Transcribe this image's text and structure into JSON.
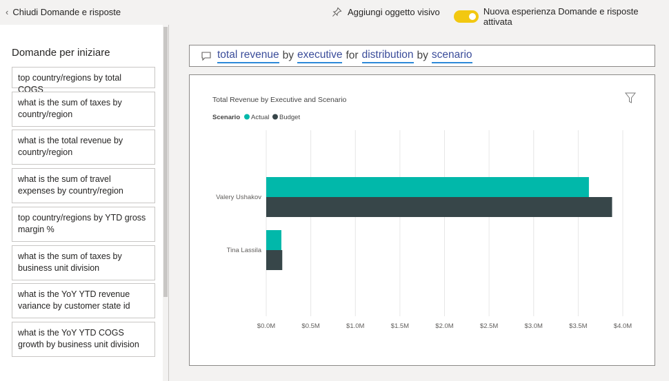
{
  "topbar": {
    "back_label": "Chiudi Domande e risposte",
    "pin_label": "Aggiungi oggetto visivo",
    "toggle_label": "Nuova esperienza Domande e risposte attivata",
    "toggle_color": "#f2c811"
  },
  "sidebar": {
    "title": "Domande per iniziare",
    "suggestions": [
      "top country/regions by total COGS",
      "what is the sum of taxes by country/region",
      "what is the total revenue by country/region",
      "what is the sum of travel expenses by country/region",
      "top country/regions by YTD gross margin %",
      "what is the sum of taxes by business unit division",
      "what is the YoY YTD revenue variance by customer state id",
      "what is the YoY YTD COGS growth by business unit division"
    ]
  },
  "query": {
    "term1": "total revenue",
    "w1": "by",
    "term2": "executive",
    "w2": "for",
    "term3": "distribution",
    "w3": "by",
    "term4": "scenario"
  },
  "chart_data": {
    "type": "bar",
    "orientation": "horizontal",
    "title": "Total Revenue by Executive and Scenario",
    "legend_title": "Scenario",
    "categories": [
      "Valery Ushakov",
      "Tina Lassila"
    ],
    "series": [
      {
        "name": "Actual",
        "color": "#01b8aa",
        "values": [
          3.62,
          0.17
        ]
      },
      {
        "name": "Budget",
        "color": "#374649",
        "values": [
          3.88,
          0.18
        ]
      }
    ],
    "x_ticks": [
      "$0.0M",
      "$0.5M",
      "$1.0M",
      "$1.5M",
      "$2.0M",
      "$2.5M",
      "$3.0M",
      "$3.5M",
      "$4.0M"
    ],
    "xlim": [
      0,
      4.0
    ],
    "grid": true,
    "legend_position": "top-left"
  }
}
